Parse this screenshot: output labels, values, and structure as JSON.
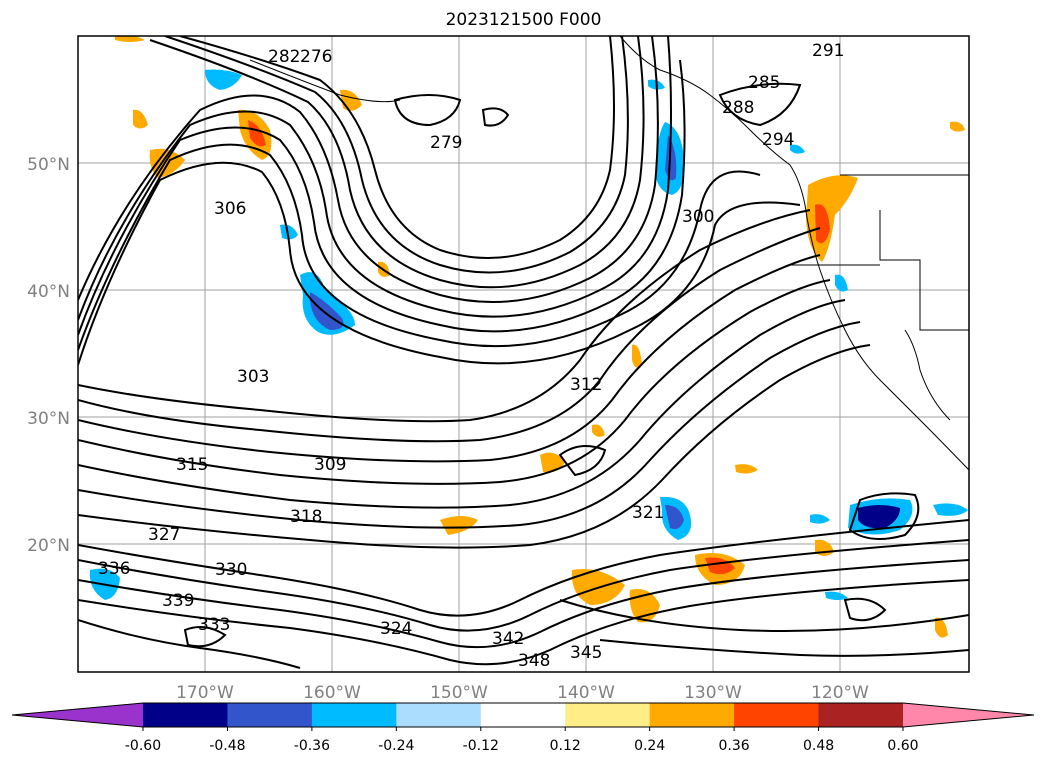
{
  "title": "2023121500 F000",
  "map": {
    "lat_labels": [
      "50°N",
      "40°N",
      "30°N",
      "20°N"
    ],
    "lon_labels": [
      "170°W",
      "160°W",
      "150°W",
      "140°W",
      "130°W",
      "120°W"
    ],
    "contour_labels": [
      "276",
      "279",
      "282",
      "285",
      "288",
      "291",
      "294",
      "300",
      "303",
      "306",
      "309",
      "312",
      "315",
      "318",
      "321",
      "324",
      "327",
      "330",
      "333",
      "336",
      "339",
      "342",
      "345",
      "348"
    ],
    "colors": {
      "land_outline": "#000000",
      "contour": "#000000",
      "grid": "#a0a0a0"
    }
  },
  "colorbar": {
    "ticks": [
      "-0.60",
      "-0.48",
      "-0.36",
      "-0.24",
      "-0.12",
      "0.12",
      "0.24",
      "0.36",
      "0.48",
      "0.60"
    ],
    "colors": [
      "#9933cc",
      "#000088",
      "#3355cc",
      "#00bbff",
      "#aaddff",
      "#ffffff",
      "#ffee88",
      "#ffaa00",
      "#ff4400",
      "#aa2222",
      "#ff88aa"
    ]
  }
}
